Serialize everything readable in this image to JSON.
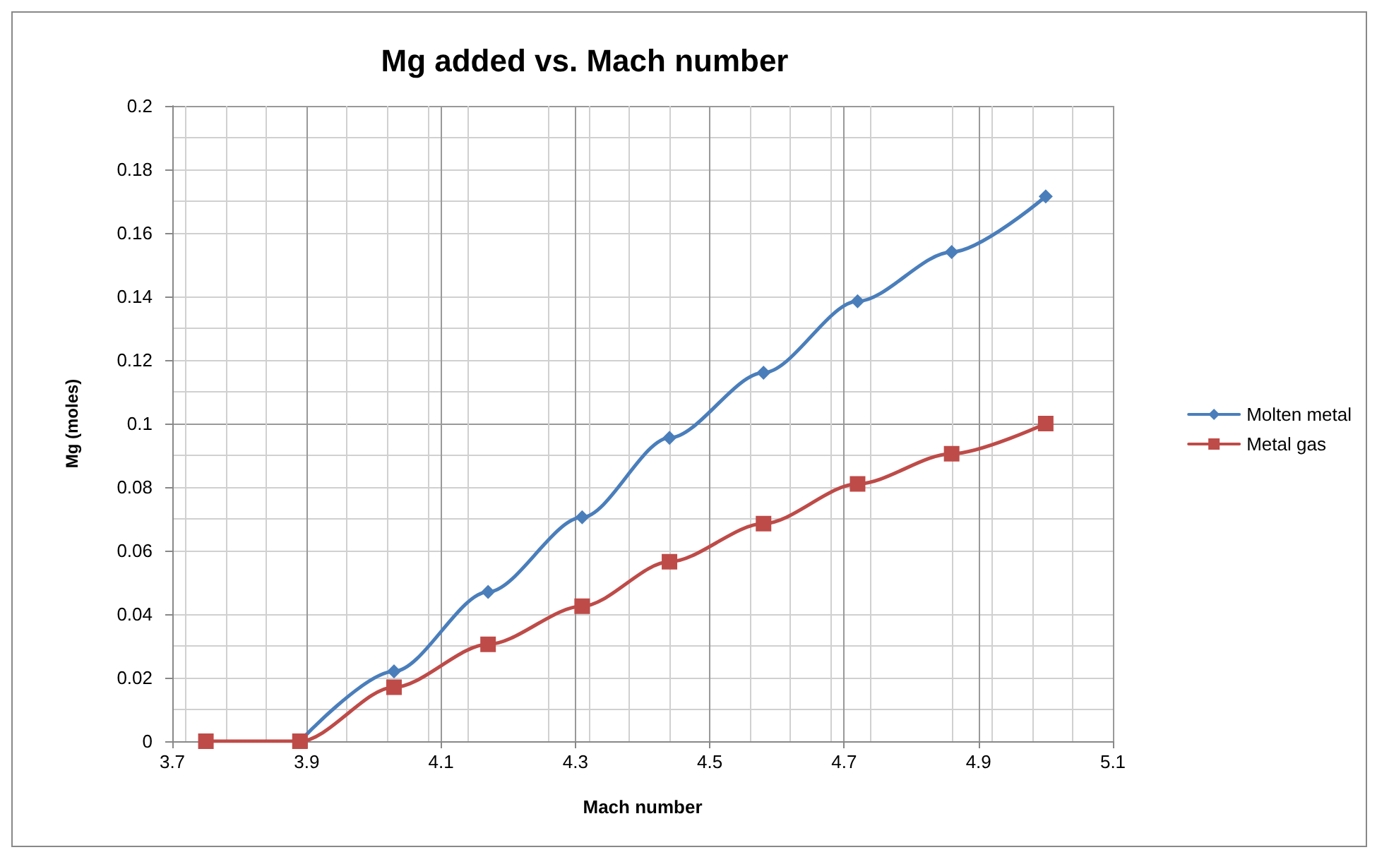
{
  "chart_data": {
    "type": "line",
    "title": "Mg added vs. Mach number",
    "xlabel": "Mach number",
    "ylabel": "Mg (moles)",
    "x": [
      3.75,
      3.89,
      4.03,
      4.17,
      4.31,
      4.44,
      4.58,
      4.72,
      4.86,
      5.0
    ],
    "series": [
      {
        "name": "Molten metal",
        "color": "#4a7ebb",
        "marker": "diamond",
        "values": [
          null,
          0,
          0.022,
          0.047,
          0.0705,
          0.0955,
          0.116,
          0.1385,
          0.154,
          0.1715
        ]
      },
      {
        "name": "Metal gas",
        "color": "#be4b48",
        "marker": "square",
        "values": [
          0,
          0,
          0.017,
          0.0305,
          0.0425,
          0.0565,
          0.0685,
          0.081,
          0.0905,
          0.1
        ]
      }
    ],
    "xlim": [
      3.7,
      5.1
    ],
    "xticks": [
      3.7,
      3.9,
      4.1,
      4.3,
      4.5,
      4.7,
      4.9,
      5.1
    ],
    "ylim": [
      0,
      0.2
    ],
    "yticks": [
      0,
      0.02,
      0.04,
      0.06,
      0.08,
      0.1,
      0.12,
      0.14,
      0.16,
      0.18,
      0.2
    ],
    "grid": true,
    "legend": "right",
    "line_style": "solid"
  }
}
